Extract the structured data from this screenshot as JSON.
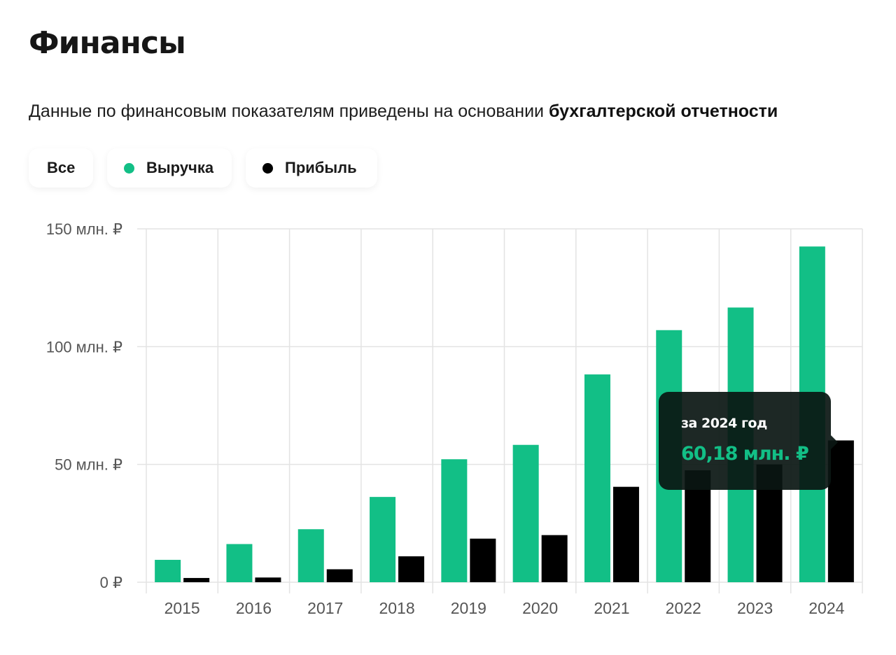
{
  "header": {
    "title": "Финансы",
    "subtitle_prefix": "Данные по финансовым показателям приведены на основании ",
    "subtitle_bold": "бухгалтерской отчетности"
  },
  "filters": {
    "all_label": "Все",
    "revenue_label": "Выручка",
    "profit_label": "Прибыль"
  },
  "colors": {
    "revenue": "#12bf86",
    "profit": "#000000",
    "grid": "#e3e3e3",
    "axis_text": "#555555"
  },
  "tooltip": {
    "label": "за 2024 год",
    "value": "60,18 млн. ₽"
  },
  "chart_data": {
    "type": "bar",
    "categories": [
      "2015",
      "2016",
      "2017",
      "2018",
      "2019",
      "2020",
      "2021",
      "2022",
      "2023",
      "2024"
    ],
    "series": [
      {
        "name": "Выручка",
        "values": [
          9.5,
          16.2,
          22.5,
          36.2,
          52.2,
          58.3,
          88.2,
          107.0,
          116.6,
          142.5
        ]
      },
      {
        "name": "Прибыль",
        "values": [
          1.8,
          2.0,
          5.5,
          11.0,
          18.5,
          20.0,
          40.5,
          47.5,
          50.0,
          60.18
        ]
      }
    ],
    "ylim": [
      0,
      150
    ],
    "yticks": [
      {
        "value": 0,
        "label": "0 ₽"
      },
      {
        "value": 50,
        "label": "50 млн. ₽"
      },
      {
        "value": 100,
        "label": "100 млн. ₽"
      },
      {
        "value": 150,
        "label": "150 млн. ₽"
      }
    ],
    "grid": true,
    "legend": "top-left"
  }
}
